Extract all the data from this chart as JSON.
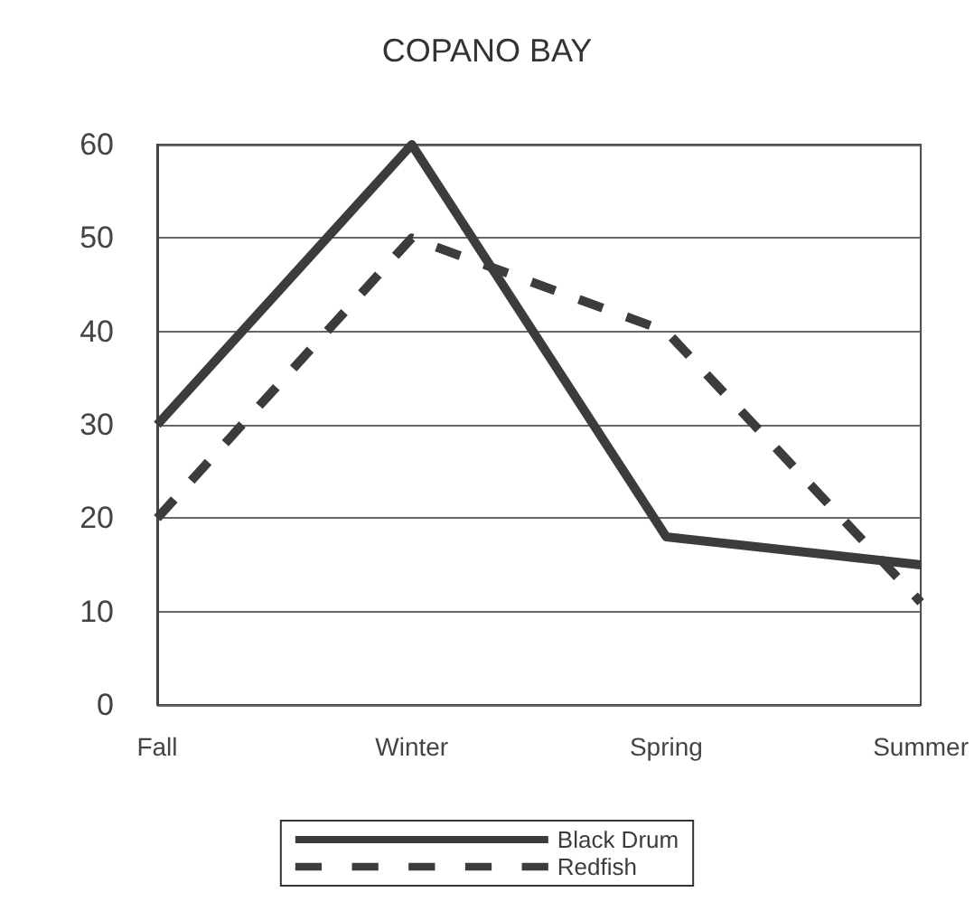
{
  "chart_data": {
    "type": "line",
    "title": "COPANO BAY",
    "categories": [
      "Fall",
      "Winter",
      "Spring",
      "Summer"
    ],
    "series": [
      {
        "name": "Black Drum",
        "color": "#3c3c3c",
        "values": [
          30,
          60,
          18,
          15
        ],
        "line_style": "solid"
      },
      {
        "name": "Redfish",
        "color": "#3c3c3c",
        "values": [
          20,
          50,
          40,
          11
        ],
        "line_style": "dashed"
      }
    ],
    "ylim": [
      0,
      60
    ],
    "yticks": [
      0,
      10,
      20,
      30,
      40,
      50,
      60
    ],
    "grid": "y",
    "legend": "bottom",
    "marker": "none"
  }
}
